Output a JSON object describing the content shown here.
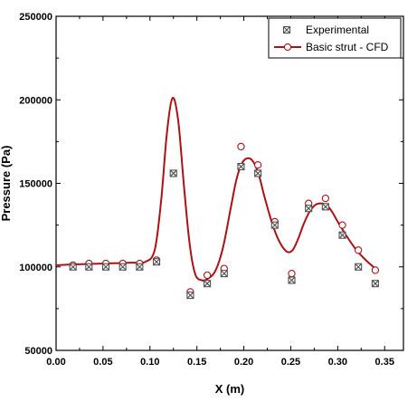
{
  "chart_data": {
    "type": "line",
    "xlabel": "X (m)",
    "ylabel": "Pressure (Pa)",
    "xlim": [
      0.0,
      0.37
    ],
    "ylim": [
      50000,
      250000
    ],
    "x_ticks": [
      "0.00",
      "0.05",
      "0.10",
      "0.15",
      "0.20",
      "0.25",
      "0.30",
      "0.35"
    ],
    "y_ticks": [
      "50000",
      "100000",
      "150000",
      "200000",
      "250000"
    ],
    "grid": false,
    "legend_position": "top-right",
    "colors": {
      "experimental": "#505050",
      "cfd": "#b01010"
    },
    "series": [
      {
        "name": "Experimental",
        "marker": "boxed-x",
        "x": [
          0.018,
          0.035,
          0.053,
          0.071,
          0.089,
          0.107,
          0.125,
          0.143,
          0.161,
          0.179,
          0.197,
          0.215,
          0.233,
          0.251,
          0.269,
          0.287,
          0.305,
          0.322,
          0.34
        ],
        "y": [
          100000,
          100000,
          100000,
          100000,
          100000,
          103000,
          156000,
          83000,
          90000,
          96000,
          160000,
          156000,
          125000,
          92000,
          135000,
          136000,
          119000,
          100000,
          90000
        ]
      },
      {
        "name": "Basic strut - CFD",
        "marker": "open-circle",
        "curve": {
          "x": [
            0.0,
            0.02,
            0.05,
            0.08,
            0.095,
            0.105,
            0.112,
            0.118,
            0.124,
            0.13,
            0.136,
            0.142,
            0.148,
            0.155,
            0.162,
            0.17,
            0.178,
            0.186,
            0.192,
            0.198,
            0.204,
            0.21,
            0.216,
            0.222,
            0.228,
            0.234,
            0.24,
            0.246,
            0.252,
            0.258,
            0.264,
            0.27,
            0.276,
            0.282,
            0.288,
            0.294,
            0.3,
            0.31,
            0.32,
            0.33,
            0.34
          ],
          "y": [
            101000,
            101500,
            102000,
            102500,
            103000,
            110000,
            140000,
            180000,
            201000,
            188000,
            150000,
            115000,
            96000,
            92000,
            93000,
            98000,
            112000,
            135000,
            152000,
            162000,
            165000,
            163000,
            155000,
            142000,
            130000,
            120000,
            113000,
            109000,
            110000,
            117000,
            126000,
            133000,
            137000,
            138000,
            137000,
            133000,
            127000,
            118000,
            110000,
            104000,
            99000
          ]
        },
        "markers": {
          "x": [
            0.018,
            0.035,
            0.053,
            0.071,
            0.089,
            0.107,
            0.143,
            0.161,
            0.179,
            0.197,
            0.215,
            0.233,
            0.251,
            0.269,
            0.287,
            0.305,
            0.322,
            0.34
          ],
          "y": [
            101000,
            102000,
            102000,
            102000,
            102000,
            104000,
            85000,
            95000,
            99000,
            172000,
            161000,
            127000,
            96000,
            138000,
            141000,
            125000,
            110000,
            98000
          ]
        }
      }
    ]
  }
}
